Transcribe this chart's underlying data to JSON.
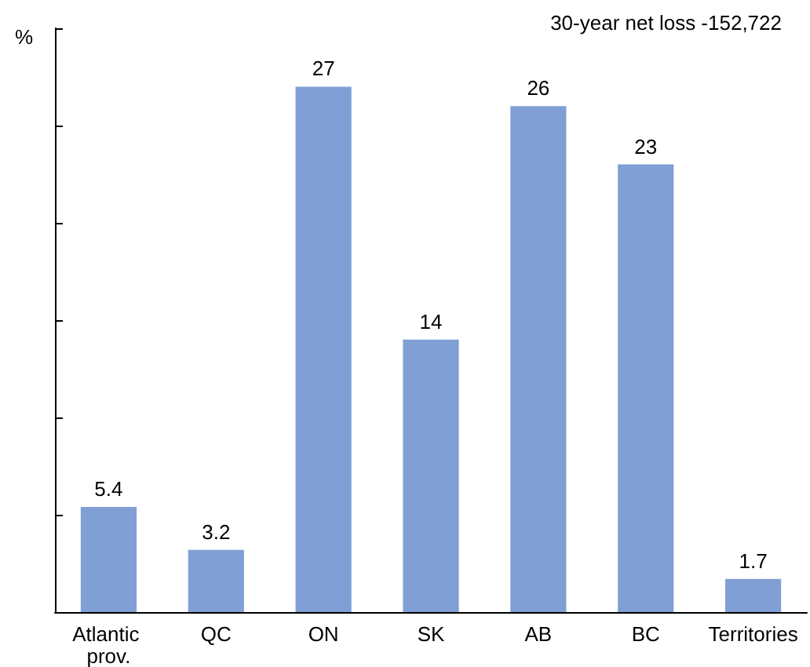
{
  "chart_data": {
    "type": "bar",
    "ylabel": "%",
    "annotations": [
      "30-year net loss -152,722"
    ],
    "categories": [
      "Atlantic prov.",
      "QC",
      "ON",
      "SK",
      "AB",
      "BC",
      "Territories"
    ],
    "values": [
      5.4,
      3.2,
      27,
      14,
      26,
      23,
      1.7
    ],
    "color": "#7f9fd5",
    "ylim": [
      0,
      30
    ],
    "yticks": [
      {
        "value": 0,
        "label": null
      },
      {
        "value": 5,
        "label": null
      },
      {
        "value": 10,
        "label": null
      },
      {
        "value": 15,
        "label": null
      },
      {
        "value": 20,
        "label": null
      },
      {
        "value": 25,
        "label": null
      },
      {
        "value": 30,
        "label": null
      }
    ],
    "data_labels": true,
    "grid": false
  }
}
